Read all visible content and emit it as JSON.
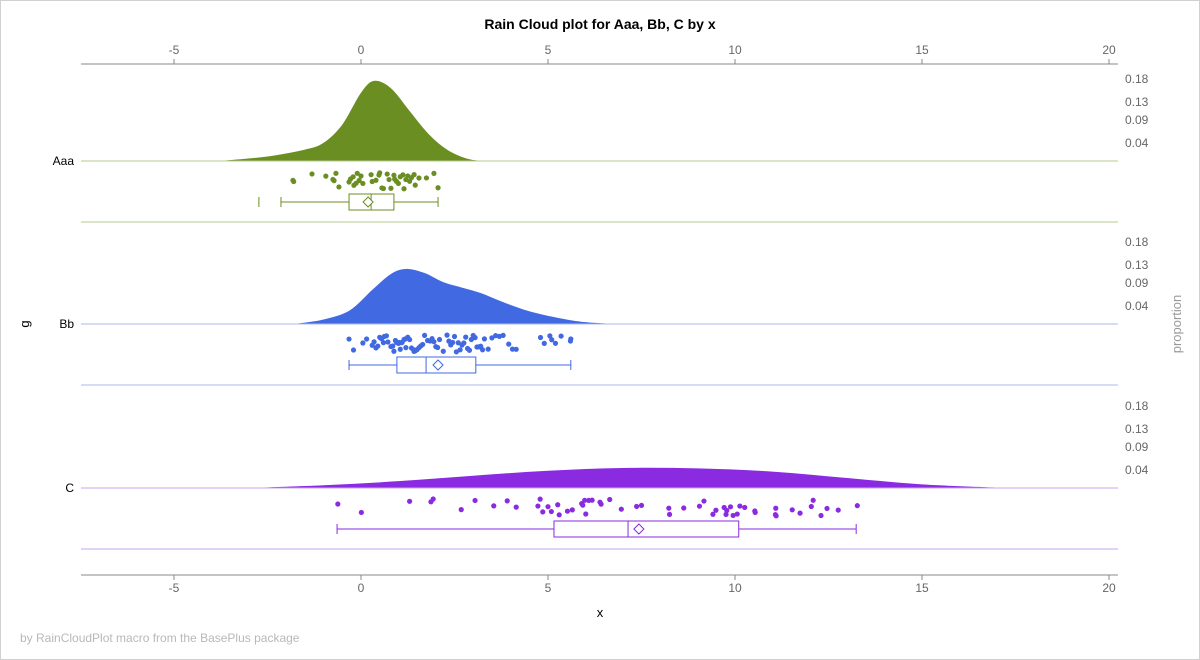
{
  "chart_data": {
    "type": "raincloud",
    "title": "Rain Cloud plot for Aaa, Bb, C by x",
    "xlabel": "x",
    "ylabel": "g",
    "y2label": "proportion",
    "xlim": [
      -7.5,
      20.25
    ],
    "xticks": [
      -5,
      0,
      5,
      10,
      15,
      20
    ],
    "proportion_ticks": [
      "0.04",
      "0.09",
      "0.13",
      "0.18"
    ],
    "footnote": "by RainCloudPlot macro from the BasePlus package",
    "groups": [
      {
        "name": "Aaa",
        "color": "#6b8e23",
        "line_color": "#b5c98f",
        "density": [
          [
            -3.8,
            0
          ],
          [
            -2.5,
            0.01
          ],
          [
            -1.5,
            0.025
          ],
          [
            -1,
            0.04
          ],
          [
            -0.5,
            0.08
          ],
          [
            0,
            0.15
          ],
          [
            0.35,
            0.176
          ],
          [
            0.8,
            0.16
          ],
          [
            1.3,
            0.11
          ],
          [
            1.8,
            0.06
          ],
          [
            2.3,
            0.025
          ],
          [
            2.8,
            0.006
          ],
          [
            3.2,
            0
          ]
        ],
        "points": [
          -1.82,
          -1.8,
          -1.31,
          -0.94,
          -0.75,
          -0.72,
          -0.67,
          -0.59,
          -0.32,
          -0.28,
          -0.21,
          -0.19,
          -0.13,
          -0.1,
          -0.05,
          0,
          0.05,
          0.27,
          0.3,
          0.4,
          0.48,
          0.5,
          0.56,
          0.6,
          0.7,
          0.75,
          0.8,
          0.88,
          0.9,
          0.95,
          1.0,
          1.05,
          1.12,
          1.15,
          1.2,
          1.25,
          1.3,
          1.35,
          1.42,
          1.45,
          1.55,
          1.75,
          1.95,
          2.06
        ],
        "outliers": [
          -2.73
        ],
        "box": {
          "whisker_low": -2.14,
          "q1": -0.32,
          "median": 0.27,
          "mean": 0.19,
          "q3": 0.88,
          "whisker_high": 2.06
        }
      },
      {
        "name": "Bb",
        "color": "#4169e1",
        "line_color": "#a9b9f0",
        "density": [
          [
            -1.8,
            0
          ],
          [
            -1,
            0.01
          ],
          [
            -0.3,
            0.03
          ],
          [
            0.3,
            0.075
          ],
          [
            0.8,
            0.11
          ],
          [
            1.2,
            0.121
          ],
          [
            1.7,
            0.112
          ],
          [
            2.2,
            0.092
          ],
          [
            2.7,
            0.08
          ],
          [
            3.2,
            0.068
          ],
          [
            3.8,
            0.048
          ],
          [
            4.5,
            0.028
          ],
          [
            5.3,
            0.013
          ],
          [
            6,
            0.004
          ],
          [
            6.8,
            0
          ]
        ],
        "points": [
          -0.32,
          -0.2,
          0.05,
          0.15,
          0.3,
          0.35,
          0.4,
          0.45,
          0.5,
          0.55,
          0.6,
          0.62,
          0.68,
          0.72,
          0.8,
          0.85,
          0.88,
          0.92,
          0.95,
          1.0,
          1.02,
          1.05,
          1.08,
          1.1,
          1.15,
          1.18,
          1.2,
          1.25,
          1.3,
          1.35,
          1.4,
          1.42,
          1.45,
          1.5,
          1.55,
          1.6,
          1.65,
          1.7,
          1.78,
          1.85,
          1.9,
          1.95,
          2.0,
          2.05,
          2.1,
          2.2,
          2.3,
          2.35,
          2.4,
          2.45,
          2.5,
          2.55,
          2.6,
          2.65,
          2.7,
          2.75,
          2.8,
          2.85,
          2.9,
          2.95,
          3.0,
          3.05,
          3.1,
          3.15,
          3.2,
          3.25,
          3.3,
          3.4,
          3.5,
          3.6,
          3.7,
          3.8,
          3.95,
          4.05,
          4.15,
          4.8,
          4.9,
          5.05,
          5.1,
          5.2,
          5.35,
          5.6,
          5.61
        ],
        "outliers": [],
        "box": {
          "whisker_low": -0.32,
          "q1": 0.96,
          "median": 1.74,
          "mean": 2.06,
          "q3": 3.07,
          "whisker_high": 5.61
        }
      },
      {
        "name": "C",
        "color": "#8a2be2",
        "line_color": "#c9a3f0",
        "density": [
          [
            -3,
            0
          ],
          [
            -1,
            0.006
          ],
          [
            1,
            0.015
          ],
          [
            3,
            0.027
          ],
          [
            5,
            0.038
          ],
          [
            7,
            0.044
          ],
          [
            9,
            0.043
          ],
          [
            11,
            0.036
          ],
          [
            13,
            0.022
          ],
          [
            15,
            0.008
          ],
          [
            17.3,
            0
          ]
        ],
        "points": [
          -0.62,
          0.01,
          1.3,
          1.87,
          1.93,
          2.68,
          3.05,
          3.55,
          3.91,
          4.15,
          4.73,
          4.79,
          4.86,
          5.0,
          5.09,
          5.26,
          5.3,
          5.52,
          5.65,
          5.9,
          5.93,
          5.98,
          6.01,
          6.09,
          6.18,
          6.39,
          6.42,
          6.65,
          6.96,
          7.37,
          7.5,
          8.23,
          8.25,
          8.63,
          9.05,
          9.17,
          9.41,
          9.49,
          9.71,
          9.76,
          9.78,
          9.88,
          9.95,
          10.06,
          10.13,
          10.26,
          10.53,
          10.54,
          11.08,
          11.09,
          11.1,
          11.53,
          11.74,
          12.04,
          12.09,
          12.3,
          12.46,
          12.76,
          13.27
        ],
        "outliers": [],
        "box": {
          "whisker_low": -0.64,
          "q1": 5.16,
          "median": 7.14,
          "mean": 7.43,
          "q3": 10.1,
          "whisker_high": 13.24
        }
      }
    ]
  }
}
